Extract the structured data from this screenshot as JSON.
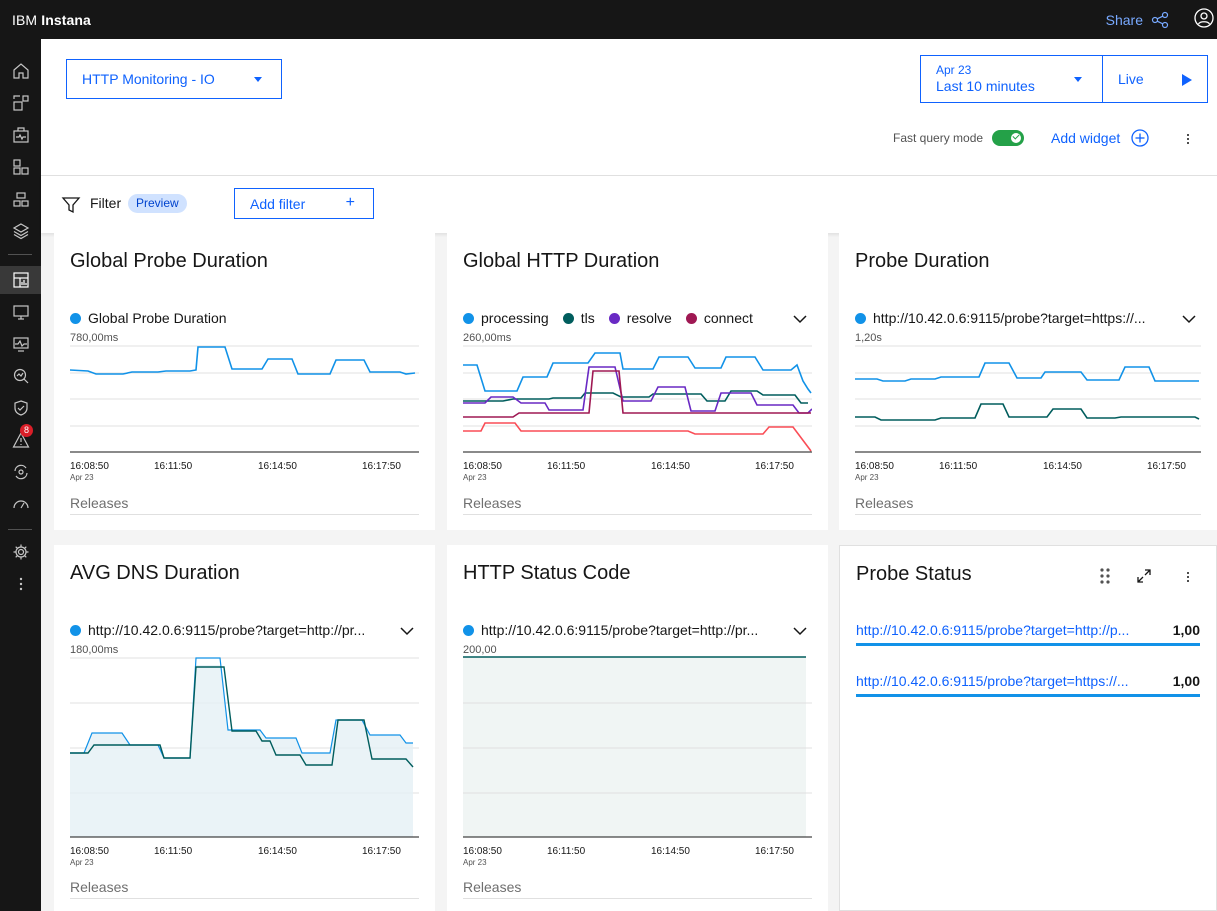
{
  "app": {
    "brand_prefix": "IBM",
    "brand_name": "Instana",
    "share_label": "Share"
  },
  "nav": {
    "badge_count": "8"
  },
  "header": {
    "dashboard": "HTTP Monitoring - IO",
    "time_date": "Apr 23",
    "time_range": "Last 10 minutes",
    "live_label": "Live",
    "fast_query_label": "Fast query mode",
    "fast_query_on": true,
    "add_widget_label": "Add widget"
  },
  "filter": {
    "label": "Filter",
    "tag": "Preview",
    "add_label": "Add filter",
    "add_icon": "+"
  },
  "colors": {
    "blue": "#1192e8",
    "teal": "#005d5d",
    "purple": "#6929c4",
    "magenta": "#9f1853",
    "red": "#fa4d56"
  },
  "widgets": [
    {
      "title": "Global Probe Duration",
      "legend": [
        {
          "name": "Global Probe Duration",
          "color": "#1192e8"
        }
      ],
      "ymax_label": "780,00ms",
      "x_ticks": [
        "16:08:50",
        "16:11:50",
        "16:14:50",
        "16:17:50"
      ],
      "x_date": "Apr 23",
      "releases": "Releases"
    },
    {
      "title": "Global HTTP Duration",
      "legend": [
        {
          "name": "processing",
          "color": "#1192e8"
        },
        {
          "name": "tls",
          "color": "#005d5d"
        },
        {
          "name": "resolve",
          "color": "#6929c4"
        },
        {
          "name": "connect",
          "color": "#9f1853"
        }
      ],
      "ymax_label": "260,00ms",
      "x_ticks": [
        "16:08:50",
        "16:11:50",
        "16:14:50",
        "16:17:50"
      ],
      "x_date": "Apr 23",
      "releases": "Releases"
    },
    {
      "title": "Probe Duration",
      "legend": [
        {
          "name": "http://10.42.0.6:9115/probe?target=https://...",
          "color": "#1192e8"
        }
      ],
      "ymax_label": "1,20s",
      "x_ticks": [
        "16:08:50",
        "16:11:50",
        "16:14:50",
        "16:17:50"
      ],
      "x_date": "Apr 23",
      "releases": "Releases"
    },
    {
      "title": "AVG DNS Duration",
      "legend": [
        {
          "name": "http://10.42.0.6:9115/probe?target=http://pr...",
          "color": "#1192e8"
        }
      ],
      "ymax_label": "180,00ms",
      "x_ticks": [
        "16:08:50",
        "16:11:50",
        "16:14:50",
        "16:17:50"
      ],
      "x_date": "Apr 23",
      "releases": "Releases"
    },
    {
      "title": "HTTP Status Code",
      "legend": [
        {
          "name": "http://10.42.0.6:9115/probe?target=http://pr...",
          "color": "#1192e8"
        }
      ],
      "ymax_label": "200,00",
      "x_ticks": [
        "16:08:50",
        "16:11:50",
        "16:14:50",
        "16:17:50"
      ],
      "x_date": "Apr 23",
      "releases": "Releases"
    }
  ],
  "probe_status": {
    "title": "Probe Status",
    "rows": [
      {
        "url": "http://10.42.0.6:9115/probe?target=http://p...",
        "value": "1,00"
      },
      {
        "url": "http://10.42.0.6:9115/probe?target=https://...",
        "value": "1,00"
      }
    ]
  }
}
